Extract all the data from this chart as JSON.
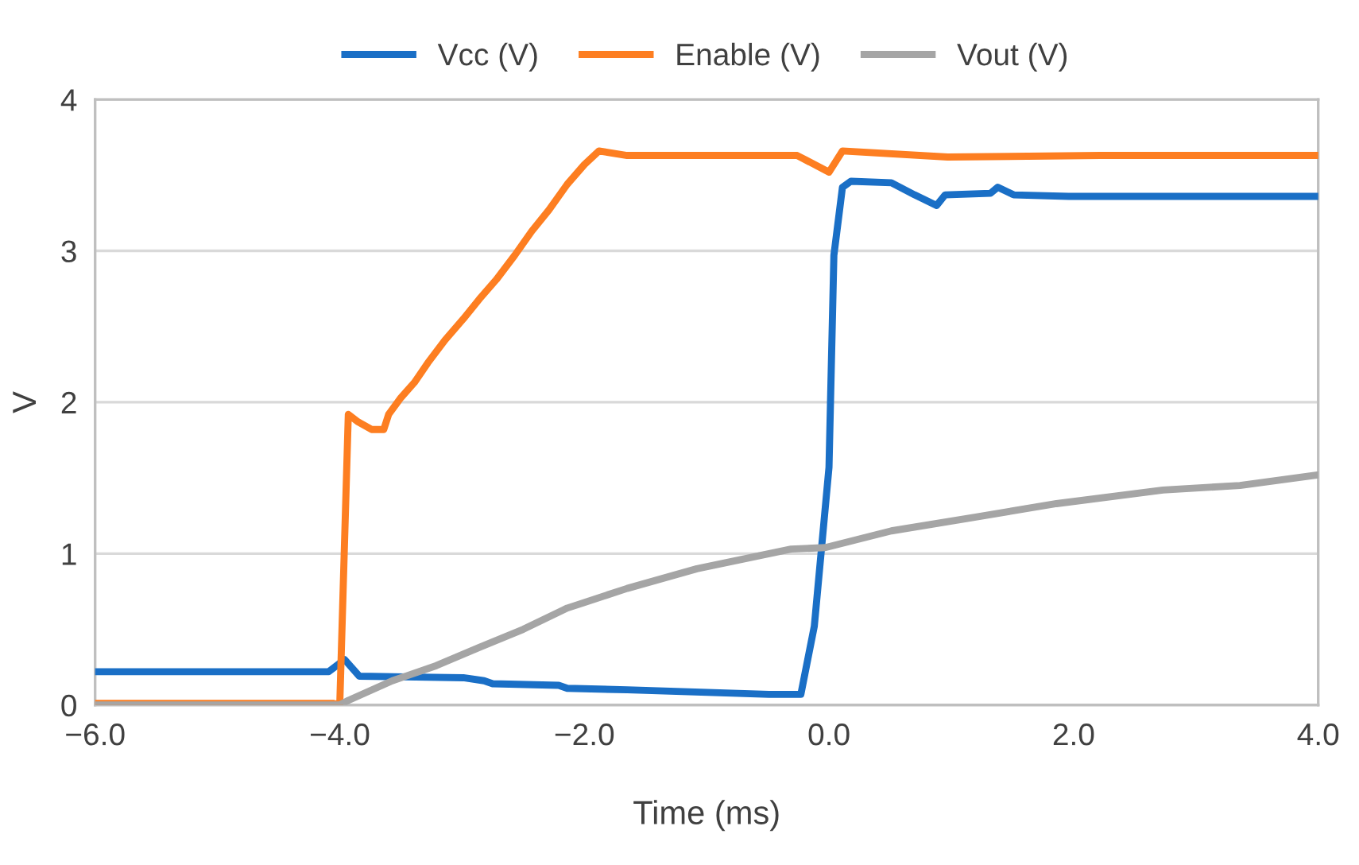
{
  "chart_data": {
    "type": "line",
    "xlabel": "Time (ms)",
    "ylabel": "V",
    "xlim": [
      -6,
      4
    ],
    "ylim": [
      0,
      4
    ],
    "xticks": [
      {
        "value": -6,
        "label": "−6.0"
      },
      {
        "value": -4,
        "label": "−4.0"
      },
      {
        "value": -2,
        "label": "−2.0"
      },
      {
        "value": 0,
        "label": "0.0"
      },
      {
        "value": 2,
        "label": "2.0"
      },
      {
        "value": 4,
        "label": "4.0"
      }
    ],
    "yticks": [
      0,
      1,
      2,
      3,
      4
    ],
    "grid": "y",
    "legend": "top",
    "marker": "none",
    "line_style": "solid",
    "series": [
      {
        "name": "Vcc (V)",
        "color": "#1a6fc6",
        "x": [
          -6,
          -4.09,
          -3.96,
          -3.84,
          -2.99,
          -2.82,
          -2.75,
          -2.21,
          -2.14,
          -1.65,
          -0.49,
          -0.23,
          -0.12,
          0,
          0.04,
          0.11,
          0.18,
          0.51,
          0.7,
          0.88,
          0.95,
          1.32,
          1.38,
          1.51,
          1.96,
          2.73,
          4
        ],
        "values": [
          0.22,
          0.22,
          0.3,
          0.19,
          0.18,
          0.16,
          0.14,
          0.13,
          0.11,
          0.1,
          0.07,
          0.07,
          0.52,
          1.57,
          2.97,
          3.42,
          3.46,
          3.45,
          3.37,
          3.3,
          3.37,
          3.38,
          3.42,
          3.37,
          3.36,
          3.36,
          3.36
        ]
      },
      {
        "name": "Enable (V)",
        "color": "#fd7e21",
        "x": [
          -6,
          -4.05,
          -4.0,
          -3.93,
          -3.85,
          -3.74,
          -3.64,
          -3.6,
          -3.5,
          -3.39,
          -3.28,
          -3.14,
          -2.99,
          -2.86,
          -2.72,
          -2.57,
          -2.43,
          -2.29,
          -2.14,
          -2.0,
          -1.88,
          -1.65,
          -0.26,
          0,
          0.11,
          0.97,
          2.22,
          4
        ],
        "values": [
          0.01,
          0.01,
          0.0,
          1.92,
          1.87,
          1.82,
          1.82,
          1.92,
          2.03,
          2.13,
          2.26,
          2.41,
          2.55,
          2.68,
          2.81,
          2.97,
          3.13,
          3.27,
          3.44,
          3.57,
          3.66,
          3.63,
          3.63,
          3.52,
          3.66,
          3.62,
          3.63,
          3.63
        ]
      },
      {
        "name": "Vout (V)",
        "color": "#a5a5a5",
        "x": [
          -6,
          -4.0,
          -3.93,
          -3.57,
          -3.21,
          -2.86,
          -2.5,
          -2.14,
          -1.65,
          -1.08,
          -0.31,
          -0.03,
          0.51,
          1.19,
          1.86,
          2.73,
          3.36,
          4
        ],
        "values": [
          0,
          0,
          0.03,
          0.16,
          0.26,
          0.38,
          0.5,
          0.64,
          0.77,
          0.9,
          1.03,
          1.04,
          1.15,
          1.24,
          1.33,
          1.42,
          1.45,
          1.52
        ]
      }
    ]
  }
}
